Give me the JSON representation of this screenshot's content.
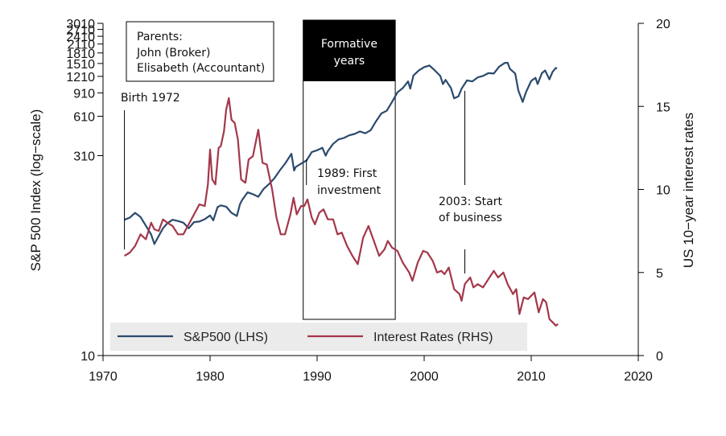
{
  "colors": {
    "sp500": "#2b4a6e",
    "rates": "#a4374a",
    "legend_bg": "#ebebeb",
    "formative_fill": "#000000",
    "formative_text": "#ffffff"
  },
  "chart_data": {
    "type": "line",
    "xlim": [
      1970,
      2020
    ],
    "x_ticks": [
      "1970",
      "1980",
      "1990",
      "2000",
      "2010",
      "2020"
    ],
    "y_left": {
      "label": "S&P 500 Index (log−scale)",
      "scale": "log",
      "ylim": [
        10,
        3010
      ],
      "ticks": [
        "10",
        "310",
        "610",
        "910",
        "1210",
        "1510",
        "1810",
        "2110",
        "2410",
        "2710",
        "3010"
      ]
    },
    "y_right": {
      "label": "US 10−year interest rates",
      "ylim": [
        0,
        20
      ],
      "ticks": [
        "0",
        "5",
        "10",
        "15",
        "20"
      ]
    },
    "series": [
      {
        "name": "S&P500 (LHS)",
        "axis": "left",
        "points": [
          [
            1972.0,
            103
          ],
          [
            1972.5,
            107
          ],
          [
            1973.0,
            116
          ],
          [
            1973.5,
            108
          ],
          [
            1974.0,
            93
          ],
          [
            1974.5,
            80
          ],
          [
            1974.8,
            68
          ],
          [
            1975.2,
            78
          ],
          [
            1975.6,
            89
          ],
          [
            1976.0,
            97
          ],
          [
            1976.5,
            103
          ],
          [
            1977.0,
            101
          ],
          [
            1977.5,
            98
          ],
          [
            1978.0,
            89
          ],
          [
            1978.5,
            99
          ],
          [
            1979.0,
            100
          ],
          [
            1979.5,
            104
          ],
          [
            1980.0,
            111
          ],
          [
            1980.3,
            102
          ],
          [
            1980.7,
            128
          ],
          [
            1981.0,
            132
          ],
          [
            1981.5,
            129
          ],
          [
            1982.0,
            116
          ],
          [
            1982.5,
            110
          ],
          [
            1982.8,
            135
          ],
          [
            1983.0,
            145
          ],
          [
            1983.5,
            165
          ],
          [
            1984.0,
            160
          ],
          [
            1984.5,
            153
          ],
          [
            1985.0,
            175
          ],
          [
            1985.5,
            190
          ],
          [
            1986.0,
            210
          ],
          [
            1986.5,
            240
          ],
          [
            1987.0,
            270
          ],
          [
            1987.6,
            320
          ],
          [
            1987.85,
            240
          ],
          [
            1988.0,
            255
          ],
          [
            1988.5,
            270
          ],
          [
            1989.0,
            285
          ],
          [
            1989.5,
            330
          ],
          [
            1990.0,
            340
          ],
          [
            1990.5,
            355
          ],
          [
            1990.8,
            310
          ],
          [
            1991.0,
            335
          ],
          [
            1991.5,
            380
          ],
          [
            1992.0,
            410
          ],
          [
            1992.5,
            420
          ],
          [
            1993.0,
            440
          ],
          [
            1993.5,
            450
          ],
          [
            1994.0,
            470
          ],
          [
            1994.5,
            455
          ],
          [
            1995.0,
            480
          ],
          [
            1995.5,
            560
          ],
          [
            1996.0,
            640
          ],
          [
            1996.5,
            670
          ],
          [
            1997.0,
            780
          ],
          [
            1997.5,
            920
          ],
          [
            1998.0,
            990
          ],
          [
            1998.5,
            1110
          ],
          [
            1998.7,
            980
          ],
          [
            1999.0,
            1230
          ],
          [
            1999.5,
            1340
          ],
          [
            2000.0,
            1420
          ],
          [
            2000.5,
            1460
          ],
          [
            2001.0,
            1340
          ],
          [
            2001.5,
            1220
          ],
          [
            2001.75,
            1060
          ],
          [
            2002.0,
            1140
          ],
          [
            2002.5,
            990
          ],
          [
            2002.8,
            830
          ],
          [
            2003.2,
            860
          ],
          [
            2003.5,
            980
          ],
          [
            2004.0,
            1130
          ],
          [
            2004.5,
            1110
          ],
          [
            2005.0,
            1190
          ],
          [
            2005.5,
            1220
          ],
          [
            2006.0,
            1280
          ],
          [
            2006.5,
            1270
          ],
          [
            2007.0,
            1430
          ],
          [
            2007.5,
            1520
          ],
          [
            2007.8,
            1530
          ],
          [
            2008.0,
            1380
          ],
          [
            2008.5,
            1270
          ],
          [
            2008.8,
            950
          ],
          [
            2009.2,
            780
          ],
          [
            2009.5,
            920
          ],
          [
            2010.0,
            1120
          ],
          [
            2010.4,
            1180
          ],
          [
            2010.6,
            1060
          ],
          [
            2011.0,
            1280
          ],
          [
            2011.3,
            1340
          ],
          [
            2011.7,
            1150
          ],
          [
            2012.0,
            1310
          ],
          [
            2012.3,
            1400
          ],
          [
            2012.4,
            1380
          ]
        ]
      },
      {
        "name": "Interest Rates (RHS)",
        "axis": "right",
        "points": [
          [
            1972.0,
            6.0
          ],
          [
            1972.5,
            6.2
          ],
          [
            1973.0,
            6.6
          ],
          [
            1973.5,
            7.3
          ],
          [
            1974.0,
            7.0
          ],
          [
            1974.5,
            8.0
          ],
          [
            1974.8,
            7.6
          ],
          [
            1975.2,
            7.5
          ],
          [
            1975.6,
            8.2
          ],
          [
            1976.0,
            8.0
          ],
          [
            1976.5,
            7.8
          ],
          [
            1977.0,
            7.3
          ],
          [
            1977.5,
            7.3
          ],
          [
            1978.0,
            7.9
          ],
          [
            1978.5,
            8.5
          ],
          [
            1979.0,
            9.1
          ],
          [
            1979.5,
            9.0
          ],
          [
            1979.8,
            10.3
          ],
          [
            1980.0,
            12.4
          ],
          [
            1980.2,
            10.6
          ],
          [
            1980.5,
            10.3
          ],
          [
            1980.8,
            12.5
          ],
          [
            1981.0,
            12.6
          ],
          [
            1981.3,
            13.5
          ],
          [
            1981.5,
            14.8
          ],
          [
            1981.75,
            15.5
          ],
          [
            1982.0,
            14.2
          ],
          [
            1982.3,
            14.0
          ],
          [
            1982.6,
            13.0
          ],
          [
            1982.9,
            10.6
          ],
          [
            1983.3,
            10.4
          ],
          [
            1983.6,
            11.8
          ],
          [
            1984.0,
            12.0
          ],
          [
            1984.5,
            13.6
          ],
          [
            1984.9,
            11.6
          ],
          [
            1985.3,
            11.5
          ],
          [
            1985.8,
            10.0
          ],
          [
            1986.2,
            8.3
          ],
          [
            1986.6,
            7.3
          ],
          [
            1987.0,
            7.3
          ],
          [
            1987.5,
            8.5
          ],
          [
            1987.8,
            9.5
          ],
          [
            1988.1,
            8.5
          ],
          [
            1988.5,
            9.0
          ],
          [
            1988.8,
            9.0
          ],
          [
            1989.1,
            9.4
          ],
          [
            1989.5,
            8.3
          ],
          [
            1989.8,
            7.9
          ],
          [
            1990.2,
            8.6
          ],
          [
            1990.6,
            8.8
          ],
          [
            1991.0,
            8.2
          ],
          [
            1991.5,
            8.2
          ],
          [
            1991.9,
            7.3
          ],
          [
            1992.3,
            7.4
          ],
          [
            1992.8,
            6.6
          ],
          [
            1993.3,
            6.0
          ],
          [
            1993.8,
            5.5
          ],
          [
            1994.3,
            7.1
          ],
          [
            1994.8,
            7.8
          ],
          [
            1995.3,
            6.9
          ],
          [
            1995.8,
            6.0
          ],
          [
            1996.3,
            6.4
          ],
          [
            1996.6,
            6.9
          ],
          [
            1997.0,
            6.5
          ],
          [
            1997.5,
            6.3
          ],
          [
            1998.0,
            5.6
          ],
          [
            1998.6,
            5.0
          ],
          [
            1998.9,
            4.5
          ],
          [
            1999.4,
            5.6
          ],
          [
            1999.9,
            6.3
          ],
          [
            2000.3,
            6.2
          ],
          [
            2000.8,
            5.7
          ],
          [
            2001.2,
            5.0
          ],
          [
            2001.6,
            5.1
          ],
          [
            2001.9,
            4.9
          ],
          [
            2002.3,
            5.3
          ],
          [
            2002.8,
            4.0
          ],
          [
            2003.3,
            3.7
          ],
          [
            2003.5,
            3.3
          ],
          [
            2003.8,
            4.3
          ],
          [
            2004.3,
            4.7
          ],
          [
            2004.6,
            4.1
          ],
          [
            2005.0,
            4.3
          ],
          [
            2005.5,
            4.1
          ],
          [
            2006.0,
            4.6
          ],
          [
            2006.5,
            5.1
          ],
          [
            2006.9,
            4.7
          ],
          [
            2007.4,
            5.0
          ],
          [
            2007.8,
            4.3
          ],
          [
            2008.3,
            3.7
          ],
          [
            2008.6,
            4.0
          ],
          [
            2008.9,
            2.5
          ],
          [
            2009.3,
            3.5
          ],
          [
            2009.7,
            3.4
          ],
          [
            2010.3,
            3.8
          ],
          [
            2010.7,
            2.6
          ],
          [
            2011.1,
            3.4
          ],
          [
            2011.4,
            3.2
          ],
          [
            2011.7,
            2.2
          ],
          [
            2012.0,
            2.0
          ],
          [
            2012.3,
            1.8
          ],
          [
            2012.5,
            1.9
          ]
        ]
      }
    ],
    "legend": [
      "S&P500 (LHS)",
      "Interest Rates (RHS)"
    ],
    "legend_position": "bottom"
  },
  "annotations": {
    "parents_title": "Parents:",
    "parents_father": "John (Broker)",
    "parents_mother": "Elisabeth (Accountant)",
    "birth": {
      "label": "Birth 1972",
      "year": 1972.0
    },
    "formative": {
      "label_1": "Formative",
      "label_2": "years",
      "start": 1988.7,
      "end": 1997.3
    },
    "first_investment": {
      "line_1": "1989: First",
      "line_2": "investment",
      "year": 1989.0
    },
    "start_business": {
      "line_1": "2003: Start",
      "line_2": "of business",
      "year": 2003.8
    }
  }
}
